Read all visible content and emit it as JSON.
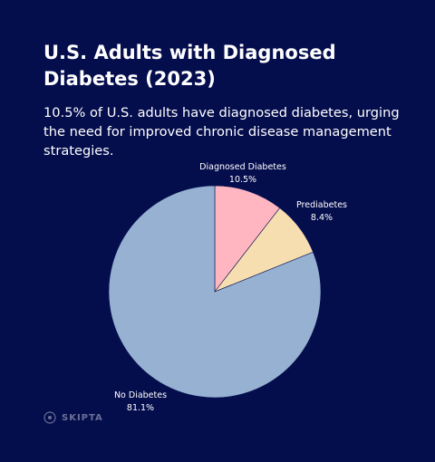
{
  "theme": {
    "background": "#050e4d",
    "label_color": "#ffffff"
  },
  "header": {
    "title": "U.S. Adults with Diagnosed Diabetes (2023)",
    "subtitle": "10.5% of U.S. adults have diagnosed diabetes, urging the need for improved chronic disease management strategies."
  },
  "brand": {
    "name": "SKIPTA",
    "icon": "skipta-logo-icon"
  },
  "chart_data": {
    "type": "pie",
    "title": "",
    "unit": "%",
    "slices": [
      {
        "label": "Diagnosed Diabetes",
        "value": 10.5,
        "value_label": "10.5%",
        "color": "#ffb6c1"
      },
      {
        "label": "Prediabetes",
        "value": 8.4,
        "value_label": "8.4%",
        "color": "#f7deb0"
      },
      {
        "label": "No Diabetes",
        "value": 81.1,
        "value_label": "81.1%",
        "color": "#96b1d2"
      }
    ],
    "start_angle": "12 o'clock",
    "direction": "clockwise",
    "legend": "none",
    "labels": "outside"
  }
}
